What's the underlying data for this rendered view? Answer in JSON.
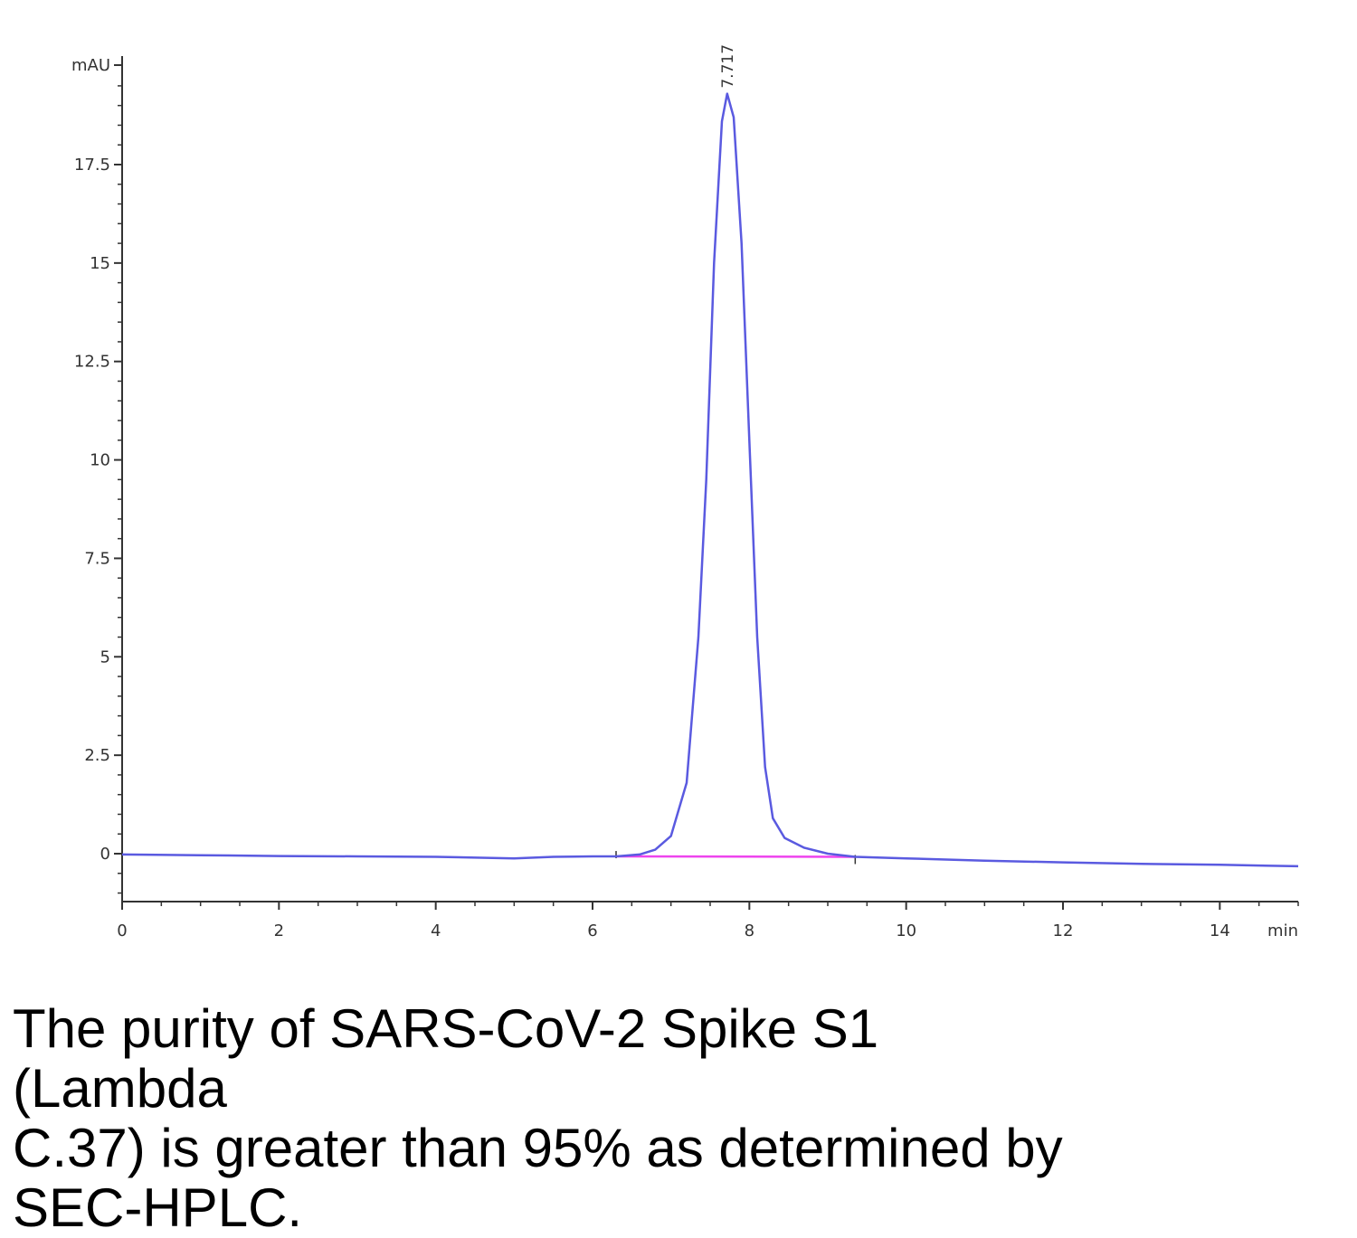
{
  "chart_data": {
    "type": "line",
    "title": "",
    "xlabel": "",
    "ylabel": "",
    "x_unit": "min",
    "y_unit": "mAU",
    "xlim": [
      0,
      15
    ],
    "ylim": [
      -1.2,
      20
    ],
    "x_ticks": [
      "0",
      "2",
      "4",
      "6",
      "8",
      "10",
      "12",
      "14"
    ],
    "y_ticks": [
      "0",
      "2.5",
      "5",
      "7.5",
      "10",
      "12.5",
      "15",
      "17.5"
    ],
    "grid": false,
    "legend": "none",
    "colors": {
      "trace": "#5a5ae0",
      "baseline": "#ee44ee",
      "axis": "#333333"
    },
    "peak": {
      "retention_time": 7.717,
      "label": "7.717",
      "height": 19.3
    },
    "baseline_segment": {
      "x_start": 6.3,
      "x_end": 9.35
    },
    "series": [
      {
        "values": [
          [
            0,
            -0.02
          ],
          [
            1,
            -0.04
          ],
          [
            2,
            -0.06
          ],
          [
            3,
            -0.07
          ],
          [
            4,
            -0.08
          ],
          [
            5,
            -0.12
          ],
          [
            5.5,
            -0.08
          ],
          [
            6,
            -0.07
          ],
          [
            6.3,
            -0.07
          ],
          [
            6.6,
            -0.02
          ],
          [
            6.8,
            0.1
          ],
          [
            7.0,
            0.45
          ],
          [
            7.2,
            1.8
          ],
          [
            7.35,
            5.5
          ],
          [
            7.45,
            9.5
          ],
          [
            7.55,
            15.0
          ],
          [
            7.65,
            18.6
          ],
          [
            7.717,
            19.3
          ],
          [
            7.8,
            18.7
          ],
          [
            7.9,
            15.5
          ],
          [
            8.0,
            10.5
          ],
          [
            8.1,
            5.5
          ],
          [
            8.2,
            2.2
          ],
          [
            8.3,
            0.9
          ],
          [
            8.45,
            0.4
          ],
          [
            8.7,
            0.15
          ],
          [
            9.0,
            0.0
          ],
          [
            9.35,
            -0.08
          ],
          [
            10,
            -0.12
          ],
          [
            11,
            -0.18
          ],
          [
            12,
            -0.22
          ],
          [
            13,
            -0.26
          ],
          [
            14,
            -0.28
          ],
          [
            14.5,
            -0.3
          ],
          [
            15,
            -0.32
          ]
        ]
      }
    ]
  },
  "caption": "The purity of SARS-CoV-2 Spike S1 (Lambda\nC.37) is greater than 95% as determined by\nSEC-HPLC."
}
